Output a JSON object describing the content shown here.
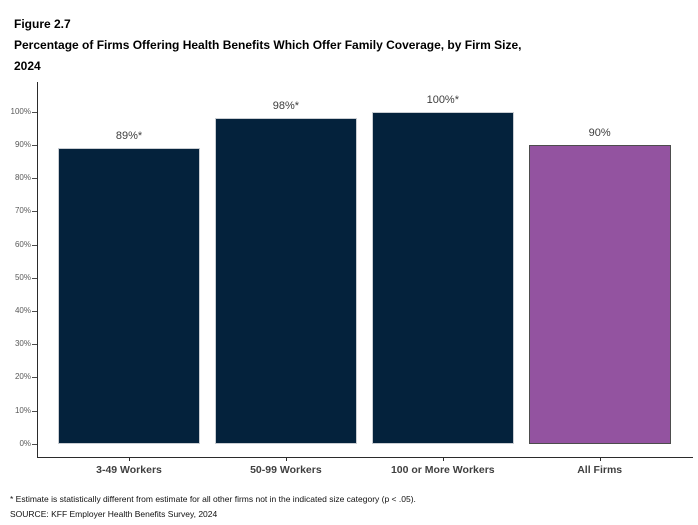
{
  "header": {
    "figure_label": "Figure 2.7",
    "title_line1": "Percentage of Firms Offering Health Benefits Which Offer Family Coverage, by Firm Size,",
    "title_line2": "2024"
  },
  "chart_data": {
    "type": "bar",
    "title": "Percentage of Firms Offering Health Benefits Which Offer Family Coverage, by Firm Size, 2024",
    "categories": [
      "3-49 Workers",
      "50-99 Workers",
      "100 or More Workers",
      "All Firms"
    ],
    "values": [
      89,
      98,
      100,
      90
    ],
    "value_labels": [
      "89%*",
      "98%*",
      "100%*",
      "90%"
    ],
    "bar_colors": [
      "#04223C",
      "#04223C",
      "#04223C",
      "#9353A0"
    ],
    "bar_border_colors": [
      "#C9CDD2",
      "#C9CDD2",
      "#C9CDD2",
      "#4D4D4D"
    ],
    "xlabel": "",
    "ylabel": "",
    "ylim": [
      0,
      100
    ],
    "ytick_step": 10,
    "ytick_labels": [
      "0%",
      "10%",
      "20%",
      "30%",
      "40%",
      "50%",
      "60%",
      "70%",
      "80%",
      "90%",
      "100%"
    ],
    "grid": false,
    "legend": false
  },
  "footnotes": {
    "note": "* Estimate is statistically different from estimate for all other firms not in the indicated size category (p < .05).",
    "source": "SOURCE: KFF Employer Health Benefits Survey, 2024"
  },
  "colors": {
    "navy": "#04223C",
    "purple": "#9353A0",
    "axis": "#2B2B2B",
    "ytick_label": "#595959",
    "value_label": "#3D3D3D",
    "category_label": "#404040"
  }
}
